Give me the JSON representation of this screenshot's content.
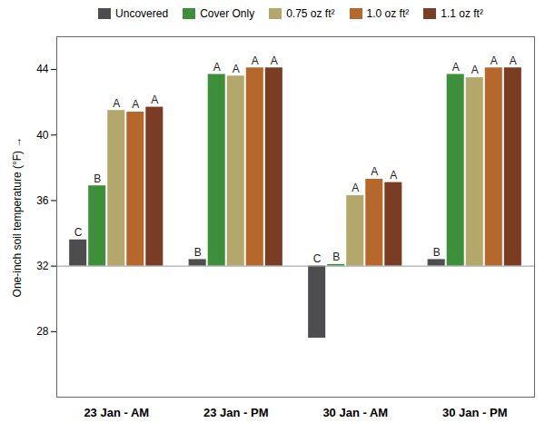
{
  "chart_data": {
    "type": "bar",
    "y_label": "One-inch soil temperature (°F)",
    "categories": [
      "23 Jan - AM",
      "23 Jan - PM",
      "30 Jan - AM",
      "30 Jan - PM"
    ],
    "baseline": 32,
    "series": [
      {
        "name": "Uncovered",
        "color": "#4d4d4f",
        "values": [
          33.6,
          32.4,
          27.6,
          32.4
        ],
        "letters": [
          "C",
          "B",
          "C",
          "B"
        ]
      },
      {
        "name": "Cover Only",
        "color": "#3e8f3c",
        "values": [
          36.9,
          43.7,
          32.1,
          43.7
        ],
        "letters": [
          "B",
          "A",
          "B",
          "A"
        ]
      },
      {
        "name": "0.75 oz ft²",
        "color": "#b3a76c",
        "values": [
          41.5,
          43.6,
          36.3,
          43.5
        ],
        "letters": [
          "A",
          "A",
          "A",
          "A"
        ]
      },
      {
        "name": "1.0 oz ft²",
        "color": "#b5672c",
        "values": [
          41.4,
          44.1,
          37.3,
          44.1
        ],
        "letters": [
          "A",
          "A",
          "A",
          "A"
        ]
      },
      {
        "name": "1.1 oz ft²",
        "color": "#7b3c24",
        "values": [
          41.7,
          44.1,
          37.1,
          44.1
        ],
        "letters": [
          "A",
          "A",
          "A",
          "A"
        ]
      }
    ],
    "ylim": [
      24,
      46
    ],
    "yticks": [
      28,
      32,
      36,
      40,
      44
    ],
    "legend": "top",
    "grid": false
  }
}
